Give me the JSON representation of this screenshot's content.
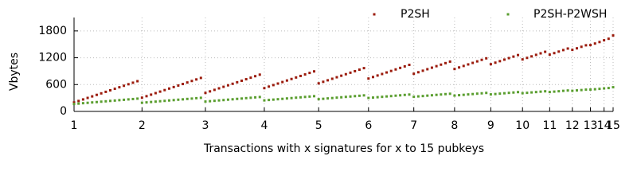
{
  "chart_data": {
    "type": "scatter",
    "xlabel": "Transactions with x signatures for x to 15 pubkeys",
    "ylabel": "Vbytes",
    "x": [
      0,
      1,
      2,
      3,
      4,
      5,
      6,
      7,
      8,
      9,
      10,
      11,
      12,
      13,
      14,
      15,
      16,
      17,
      18,
      19,
      20,
      21,
      22,
      23,
      24,
      25,
      26,
      27,
      28,
      29,
      30,
      31,
      32,
      33,
      34,
      35,
      36,
      37,
      38,
      39,
      40,
      41,
      42,
      43,
      44,
      45,
      46,
      47,
      48,
      49,
      50,
      51,
      52,
      53,
      54,
      55,
      56,
      57,
      58,
      59,
      60,
      61,
      62,
      63,
      64,
      65,
      66,
      67,
      68,
      69,
      70,
      71,
      72,
      73,
      74,
      75,
      76,
      77,
      78,
      79,
      80,
      81,
      82,
      83,
      84,
      85,
      86,
      87,
      88,
      89,
      90,
      91,
      92,
      93,
      94,
      95,
      96,
      97,
      98,
      99,
      100,
      101,
      102,
      103,
      104,
      105,
      106,
      107,
      108,
      109,
      110,
      111,
      112,
      113,
      114,
      115,
      116,
      117,
      118,
      119
    ],
    "series": [
      {
        "name": "P2SH",
        "color": "#9b1b0c",
        "values": [
          200,
          234,
          268,
          302,
          336,
          370,
          404,
          438,
          472,
          506,
          540,
          574,
          608,
          642,
          676,
          307,
          341,
          375,
          409,
          443,
          477,
          511,
          545,
          579,
          613,
          647,
          681,
          715,
          749,
          414,
          448,
          482,
          516,
          550,
          584,
          618,
          652,
          686,
          720,
          754,
          788,
          822,
          521,
          555,
          589,
          623,
          657,
          691,
          725,
          759,
          793,
          827,
          861,
          895,
          628,
          662,
          696,
          730,
          764,
          798,
          832,
          866,
          900,
          934,
          968,
          735,
          769,
          803,
          837,
          871,
          905,
          939,
          973,
          1007,
          1041,
          842,
          876,
          910,
          944,
          978,
          1012,
          1046,
          1080,
          1114,
          949,
          983,
          1017,
          1051,
          1085,
          1119,
          1153,
          1187,
          1056,
          1090,
          1124,
          1158,
          1192,
          1226,
          1260,
          1163,
          1197,
          1231,
          1265,
          1299,
          1333,
          1270,
          1304,
          1338,
          1372,
          1406,
          1377,
          1411,
          1445,
          1479,
          1484,
          1518,
          1552,
          1591,
          1625,
          1698
        ]
      },
      {
        "name": "P2SH-P2WSH",
        "color": "#5a9e2f",
        "values": [
          167,
          175,
          184,
          192,
          201,
          209,
          218,
          226,
          235,
          243,
          252,
          260,
          269,
          277,
          286,
          194,
          202,
          211,
          219,
          228,
          236,
          245,
          253,
          262,
          270,
          279,
          287,
          296,
          304,
          220,
          229,
          237,
          246,
          254,
          263,
          271,
          280,
          288,
          297,
          305,
          314,
          322,
          247,
          256,
          264,
          273,
          281,
          290,
          298,
          307,
          315,
          324,
          332,
          341,
          274,
          282,
          291,
          299,
          308,
          316,
          325,
          333,
          342,
          350,
          359,
          301,
          309,
          318,
          326,
          335,
          343,
          352,
          360,
          369,
          377,
          327,
          336,
          344,
          353,
          361,
          370,
          378,
          387,
          395,
          354,
          363,
          371,
          380,
          388,
          397,
          405,
          414,
          381,
          389,
          398,
          406,
          415,
          423,
          432,
          408,
          416,
          425,
          433,
          442,
          450,
          434,
          443,
          451,
          460,
          468,
          461,
          470,
          478,
          487,
          488,
          496,
          505,
          515,
          523,
          541
        ]
      }
    ],
    "xlim": [
      0,
      119
    ],
    "xticks": [
      {
        "value": 0,
        "label": "1"
      },
      {
        "value": 15,
        "label": "2"
      },
      {
        "value": 29,
        "label": "3"
      },
      {
        "value": 42,
        "label": "4"
      },
      {
        "value": 54,
        "label": "5"
      },
      {
        "value": 65,
        "label": "6"
      },
      {
        "value": 75,
        "label": "7"
      },
      {
        "value": 84,
        "label": "8"
      },
      {
        "value": 92,
        "label": "9"
      },
      {
        "value": 99,
        "label": "10"
      },
      {
        "value": 105,
        "label": "11"
      },
      {
        "value": 110,
        "label": "12"
      },
      {
        "value": 114,
        "label": "13"
      },
      {
        "value": 117,
        "label": "14"
      },
      {
        "value": 119,
        "label": "15"
      }
    ],
    "ylim": [
      0,
      2100
    ],
    "yticks": [
      0,
      600,
      1200,
      1800
    ],
    "grid": true,
    "legend": "upper right"
  }
}
